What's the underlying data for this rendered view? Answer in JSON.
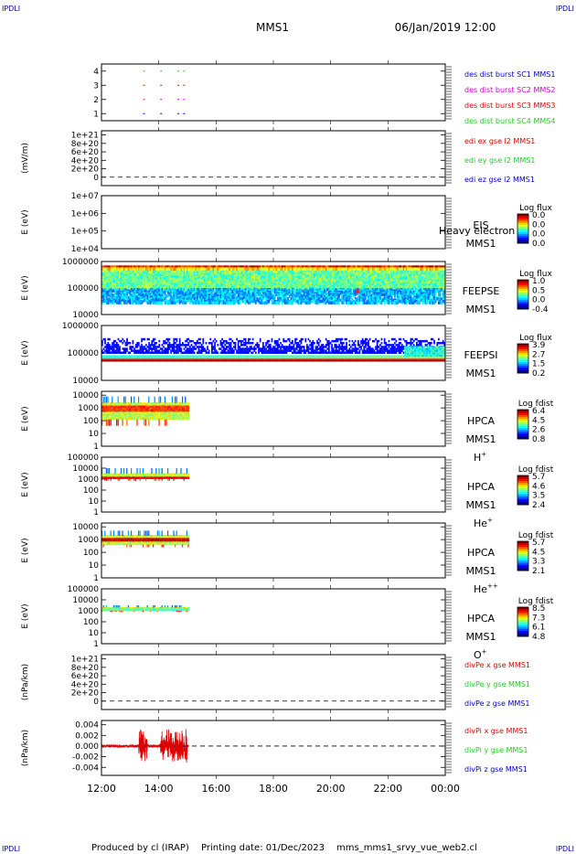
{
  "corner_marks": {
    "tl": "IPDLI",
    "tr": "IPDLI",
    "bl": "IPDLI",
    "br": "IPDLI"
  },
  "header": {
    "mission": "MMS1",
    "datetime": "06/Jan/2019 12:00"
  },
  "footer": {
    "producer": "Produced by cl (IRAP)",
    "printing_date": "Printing date: 01/Dec/2023",
    "filename": "mms_mms1_srvy_vue_web2.cl"
  },
  "colors": {
    "blue": "#0000cc",
    "magenta": "#cc00cc",
    "red": "#dd0000",
    "green": "#22cc22"
  },
  "chart_data": {
    "type": "multi-panel time series",
    "xaxis": {
      "ticks": [
        "12:00",
        "14:00",
        "16:00",
        "18:00",
        "20:00",
        "22:00",
        "00:00"
      ],
      "range_hours": [
        12,
        24
      ],
      "data_end_hour": 15.05
    },
    "panels": [
      {
        "id": "dist",
        "kind": "lines",
        "ylabel": "",
        "yticks": [
          "4",
          "3",
          "2",
          "1"
        ],
        "ylim": [
          0.5,
          4.5
        ],
        "dashed_zero": false,
        "series": [
          {
            "name": "des dist burst SC1 MMS1",
            "color": "#0000cc",
            "values": []
          },
          {
            "name": "des dist burst SC2 MMS2",
            "color": "#cc00cc",
            "values": []
          },
          {
            "name": "des dist burst SC3 MMS3",
            "color": "#dd0000",
            "values": []
          },
          {
            "name": "des dist burst SC4 MMS4",
            "color": "#22cc22",
            "values": []
          }
        ],
        "marks": [
          {
            "t": 13.45,
            "level": 4,
            "color": "#22cc22"
          },
          {
            "t": 14.05,
            "level": 4,
            "color": "#22cc22"
          },
          {
            "t": 14.65,
            "level": 4,
            "color": "#22cc22"
          },
          {
            "t": 14.85,
            "level": 4,
            "color": "#22cc22"
          },
          {
            "t": 13.45,
            "level": 3,
            "color": "#dd0000"
          },
          {
            "t": 14.05,
            "level": 3,
            "color": "#dd0000"
          },
          {
            "t": 14.65,
            "level": 3,
            "color": "#dd0000"
          },
          {
            "t": 14.85,
            "level": 3,
            "color": "#dd0000"
          },
          {
            "t": 13.45,
            "level": 2,
            "color": "#cc00cc"
          },
          {
            "t": 14.05,
            "level": 2,
            "color": "#cc00cc"
          },
          {
            "t": 14.65,
            "level": 2,
            "color": "#cc00cc"
          },
          {
            "t": 14.85,
            "level": 2,
            "color": "#cc00cc"
          },
          {
            "t": 13.45,
            "level": 1,
            "color": "#0000cc"
          },
          {
            "t": 14.05,
            "level": 1,
            "color": "#0000cc"
          },
          {
            "t": 14.65,
            "level": 1,
            "color": "#0000cc"
          },
          {
            "t": 14.85,
            "level": 1,
            "color": "#0000cc"
          }
        ]
      },
      {
        "id": "edi",
        "kind": "lines",
        "ylabel": "(mV/m)",
        "yticks": [
          "1e+21",
          "8e+20",
          "6e+20",
          "4e+20",
          "2e+20",
          "0"
        ],
        "ylim": [
          -0.2,
          1.1
        ],
        "dashed_zero": true,
        "series": [
          {
            "name": "edi ex gse l2 MMS1",
            "color": "#dd0000",
            "values": []
          },
          {
            "name": "edi ey gse l2 MMS1",
            "color": "#22cc22",
            "values": []
          },
          {
            "name": "edi ez gse l2 MMS1",
            "color": "#0000cc",
            "values": []
          }
        ]
      },
      {
        "id": "eis",
        "kind": "spectrogram",
        "ylabel": "E (eV)",
        "yticks": [
          "1e+07",
          "1e+06",
          "1e+05",
          "1e+04"
        ],
        "log_ymin": 4,
        "log_ymax": 7,
        "labels": [
          "EIS",
          "MMS1"
        ],
        "overlay_label": "Heavy electron to",
        "cbar_title": "Log flux",
        "cbar_ticks": [
          "0.0",
          "0.0",
          "0.0",
          "0.0"
        ],
        "pattern": "empty"
      },
      {
        "id": "feepse",
        "kind": "spectrogram",
        "ylabel": "E (eV)",
        "yticks": [
          "1000000",
          "100000",
          "10000"
        ],
        "log_ymin": 4,
        "log_ymax": 6,
        "labels": [
          "FEEPSE",
          "MMS1"
        ],
        "cbar_title": "Log flux",
        "cbar_ticks": [
          "1.0",
          "0.5",
          "0.0",
          "-0.4"
        ],
        "pattern": "feepse"
      },
      {
        "id": "feepsi",
        "kind": "spectrogram",
        "ylabel": "E (eV)",
        "yticks": [
          "1000000",
          "100000",
          "10000"
        ],
        "log_ymin": 4,
        "log_ymax": 6,
        "labels": [
          "FEEPSI",
          "MMS1"
        ],
        "cbar_title": "Log flux",
        "cbar_ticks": [
          "3.9",
          "2.7",
          "1.5",
          "0.2"
        ],
        "pattern": "feepsi"
      },
      {
        "id": "hpca_h",
        "kind": "spectrogram",
        "ylabel": "E (eV)",
        "yticks": [
          "10000",
          "1000",
          "100",
          "10",
          "1"
        ],
        "log_ymin": 0,
        "log_ymax": 4.3,
        "labels": [
          "HPCA",
          "MMS1",
          "H"
        ],
        "species_sup": "+",
        "cbar_title": "Log fdist",
        "cbar_ticks": [
          "6.4",
          "4.5",
          "2.6",
          "0.8"
        ],
        "pattern": "hpca_h"
      },
      {
        "id": "hpca_he",
        "kind": "spectrogram",
        "ylabel": "E (eV)",
        "yticks": [
          "100000",
          "10000",
          "1000",
          "100",
          "10",
          "1"
        ],
        "log_ymin": 0,
        "log_ymax": 5,
        "labels": [
          "HPCA",
          "MMS1",
          "He"
        ],
        "species_sup": "+",
        "cbar_title": "Log fdist",
        "cbar_ticks": [
          "5.7",
          "4.6",
          "3.5",
          "2.4"
        ],
        "pattern": "hpca_he"
      },
      {
        "id": "hpca_hepp",
        "kind": "spectrogram",
        "ylabel": "E (eV)",
        "yticks": [
          "10000",
          "1000",
          "100",
          "10",
          "1"
        ],
        "log_ymin": 0,
        "log_ymax": 4.3,
        "labels": [
          "HPCA",
          "MMS1",
          "He"
        ],
        "species_sup": "++",
        "cbar_title": "Log fdist",
        "cbar_ticks": [
          "5.7",
          "4.5",
          "3.3",
          "2.1"
        ],
        "pattern": "hpca_hepp"
      },
      {
        "id": "hpca_o",
        "kind": "spectrogram",
        "ylabel": "E (eV)",
        "yticks": [
          "100000",
          "10000",
          "1000",
          "100",
          "10",
          "1"
        ],
        "log_ymin": 0,
        "log_ymax": 5,
        "labels": [
          "HPCA",
          "MMS1",
          "O"
        ],
        "species_sup": "+",
        "cbar_title": "Log fdist",
        "cbar_ticks": [
          "8.5",
          "7.3",
          "6.1",
          "4.8"
        ],
        "pattern": "hpca_o"
      },
      {
        "id": "divpe",
        "kind": "lines",
        "ylabel": "(nPa/km)",
        "yticks": [
          "1e+21",
          "8e+20",
          "6e+20",
          "4e+20",
          "2e+20",
          "0"
        ],
        "ylim": [
          -0.2,
          1.1
        ],
        "dashed_zero": true,
        "series": [
          {
            "name": "divPe x gse MMS1",
            "color": "#dd0000",
            "values": []
          },
          {
            "name": "divPe y gse MMS1",
            "color": "#22cc22",
            "values": []
          },
          {
            "name": "divPe z gse MMS1",
            "color": "#0000cc",
            "values": []
          }
        ]
      },
      {
        "id": "divpi",
        "kind": "lines",
        "ylabel": "(nPa/km)",
        "yticks": [
          "0.004",
          "0.002",
          "0.000",
          "-0.002",
          "-0.004"
        ],
        "ylim": [
          -0.0055,
          0.0048
        ],
        "dashed_zero": true,
        "series": [
          {
            "name": "divPi x gse MMS1",
            "color": "#dd0000",
            "t_range": [
              12.0,
              15.05
            ],
            "amplitude": 0.0035
          },
          {
            "name": "divPi y gse MMS1",
            "color": "#22cc22",
            "t_range": [
              12.0,
              15.05
            ],
            "amplitude": 0.0004
          },
          {
            "name": "divPi z gse MMS1",
            "color": "#0000cc",
            "t_range": [
              12.0,
              15.05
            ],
            "amplitude": 0.0004
          }
        ]
      }
    ]
  }
}
